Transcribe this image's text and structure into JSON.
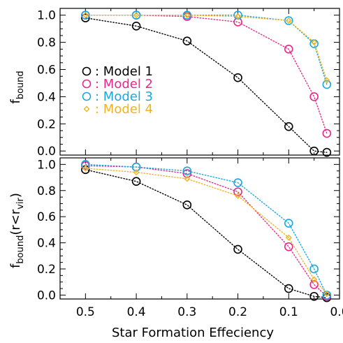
{
  "chart_data": [
    {
      "type": "line",
      "panel": "top",
      "ylabel_main": "f",
      "ylabel_sub": "bound",
      "xlim": [
        0.55,
        0.0
      ],
      "ylim": [
        -0.03,
        1.05
      ],
      "yticks": [
        "0.0",
        "0.2",
        "0.4",
        "0.6",
        "0.8",
        "1.0"
      ],
      "grid": false,
      "legend_position": "center-left",
      "series": [
        {
          "name": "Model 1",
          "color": "#000000",
          "marker": "circle",
          "x": [
            0.5,
            0.4,
            0.3,
            0.2,
            0.1,
            0.05,
            0.025
          ],
          "y": [
            0.98,
            0.92,
            0.81,
            0.54,
            0.18,
            0.0,
            -0.01
          ]
        },
        {
          "name": "Model 2",
          "color": "#e8288c",
          "marker": "circle",
          "x": [
            0.5,
            0.4,
            0.3,
            0.2,
            0.1,
            0.05,
            0.025
          ],
          "y": [
            1.0,
            1.0,
            0.99,
            0.95,
            0.75,
            0.4,
            0.13
          ]
        },
        {
          "name": "Model 3",
          "color": "#1aa8e0",
          "marker": "circle",
          "x": [
            0.5,
            0.4,
            0.3,
            0.2,
            0.1,
            0.05,
            0.025
          ],
          "y": [
            1.0,
            1.0,
            1.0,
            1.0,
            0.96,
            0.79,
            0.49
          ]
        },
        {
          "name": "Model 4",
          "color": "#f0b41e",
          "marker": "diamond",
          "x": [
            0.5,
            0.4,
            0.3,
            0.2,
            0.1,
            0.05,
            0.025
          ],
          "y": [
            1.0,
            1.0,
            1.0,
            0.99,
            0.96,
            0.8,
            0.52
          ]
        }
      ]
    },
    {
      "type": "line",
      "panel": "bottom",
      "ylabel_main": "f",
      "ylabel_sub": "bound",
      "ylabel_paren_open": "(r<r",
      "ylabel_paren_sub": "vir",
      "ylabel_paren_close": ")",
      "xlabel": "Star Formation Effeciency",
      "xticks": [
        "0.5",
        "0.4",
        "0.3",
        "0.2",
        "0.1",
        "0.0"
      ],
      "xlim": [
        0.55,
        0.0
      ],
      "ylim": [
        -0.03,
        1.05
      ],
      "yticks": [
        "0.0",
        "0.2",
        "0.4",
        "0.6",
        "0.8",
        "1.0"
      ],
      "grid": false,
      "series": [
        {
          "name": "Model 1",
          "color": "#000000",
          "marker": "circle",
          "x": [
            0.5,
            0.4,
            0.3,
            0.2,
            0.1,
            0.05,
            0.025
          ],
          "y": [
            0.96,
            0.87,
            0.69,
            0.35,
            0.05,
            -0.01,
            -0.02
          ]
        },
        {
          "name": "Model 2",
          "color": "#e8288c",
          "marker": "circle",
          "x": [
            0.5,
            0.4,
            0.3,
            0.2,
            0.1,
            0.05,
            0.025
          ],
          "y": [
            0.99,
            0.98,
            0.93,
            0.79,
            0.37,
            0.08,
            -0.01
          ]
        },
        {
          "name": "Model 3",
          "color": "#1aa8e0",
          "marker": "circle",
          "x": [
            0.5,
            0.4,
            0.3,
            0.2,
            0.1,
            0.05,
            0.025
          ],
          "y": [
            1.0,
            0.98,
            0.95,
            0.86,
            0.55,
            0.2,
            0.0
          ]
        },
        {
          "name": "Model 4",
          "color": "#f0b41e",
          "marker": "diamond",
          "x": [
            0.5,
            0.4,
            0.3,
            0.2,
            0.1,
            0.05,
            0.025
          ],
          "y": [
            0.97,
            0.94,
            0.89,
            0.76,
            0.44,
            0.12,
            0.01
          ]
        }
      ]
    }
  ],
  "legend": [
    {
      "label": "Model 1",
      "color": "#000000",
      "marker": "circle"
    },
    {
      "label": "Model 2",
      "color": "#e8288c",
      "marker": "circle"
    },
    {
      "label": "Model 3",
      "color": "#1aa8e0",
      "marker": "circle"
    },
    {
      "label": "Model 4",
      "color": "#f0b41e",
      "marker": "diamond"
    }
  ]
}
